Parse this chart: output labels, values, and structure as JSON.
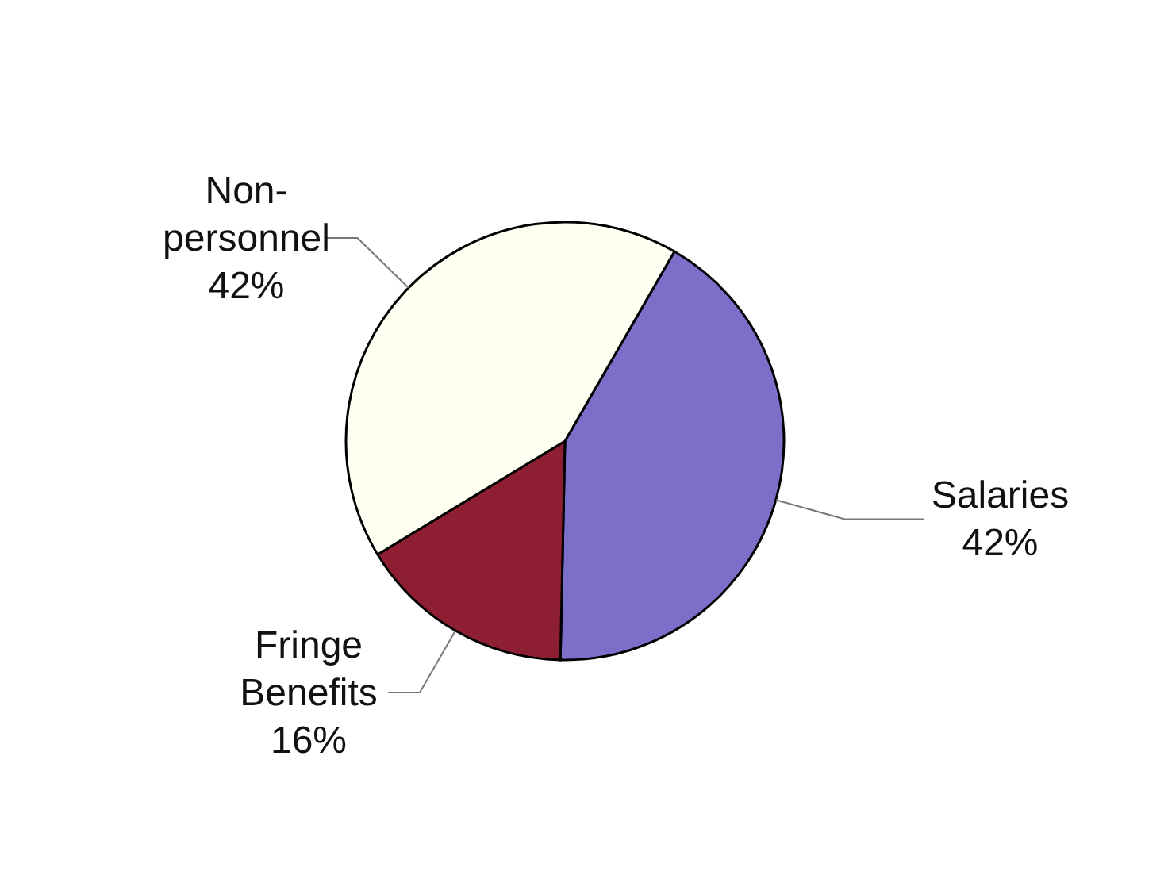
{
  "chart_data": {
    "type": "pie",
    "categories": [
      "Salaries",
      "Fringe Benefits",
      "Non-personnel"
    ],
    "values": [
      42,
      16,
      42
    ],
    "colors": [
      "#7b6fc9",
      "#8e1f33",
      "#fffff2"
    ],
    "value_labels": [
      "42%",
      "16%",
      "42%"
    ]
  }
}
